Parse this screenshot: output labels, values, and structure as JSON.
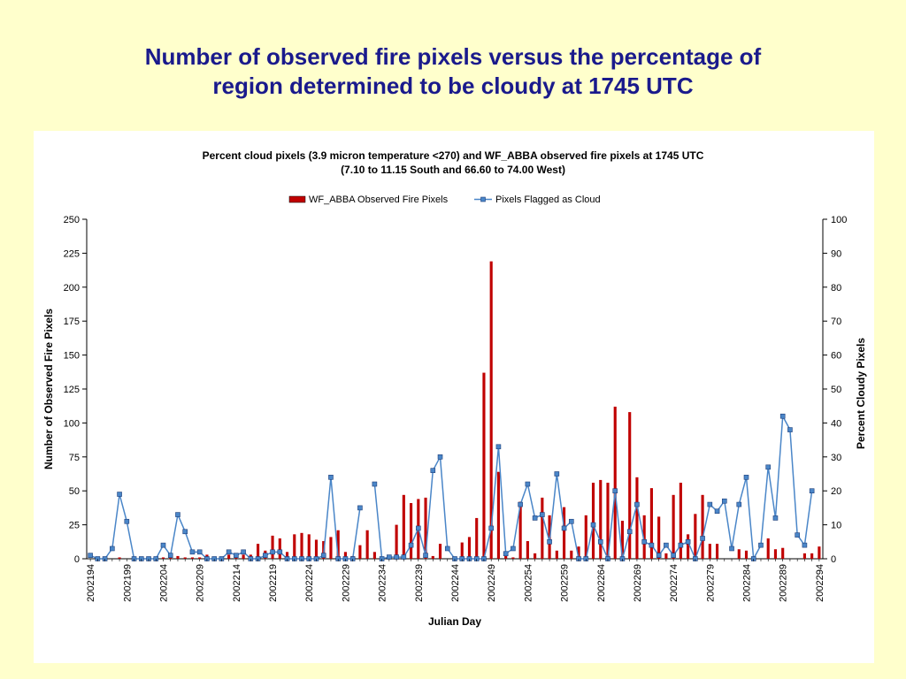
{
  "slide": {
    "title_line1": "Number of observed fire pixels versus the percentage of",
    "title_line2": "region determined to be cloudy at 1745 UTC"
  },
  "colors": {
    "background": "#ffffcc",
    "title": "#1a1a8c",
    "bars": "#c00000",
    "line": "#4a86c8"
  },
  "chart_data": {
    "type": "bar",
    "title": "Percent cloud pixels (3.9 micron temperature <270) and WF_ABBA observed fire pixels at 1745 UTC",
    "subtitle": "(7.10 to 11.15 South and 66.60 to 74.00 West)",
    "xlabel": "Julian Day",
    "ylabel": "Number of Observed Fire Pixels",
    "y2label": "Percent Cloudy Pixels",
    "ylim": [
      0,
      250
    ],
    "y2lim": [
      0,
      100
    ],
    "yticks": [
      "0",
      "25",
      "50",
      "75",
      "100",
      "125",
      "150",
      "175",
      "200",
      "225",
      "250"
    ],
    "y2ticks": [
      "0",
      "10",
      "20",
      "30",
      "40",
      "50",
      "60",
      "70",
      "80",
      "90",
      "100"
    ],
    "xticks": [
      "2002194",
      "2002199",
      "2002204",
      "2002209",
      "2002214",
      "2002219",
      "2002224",
      "2002229",
      "2002234",
      "2002239",
      "2002244",
      "2002249",
      "2002254",
      "2002259",
      "2002264",
      "2002269",
      "2002274",
      "2002279",
      "2002284",
      "2002289",
      "2002294"
    ],
    "legend_position": "top-center",
    "grid": false,
    "x": [
      194,
      195,
      196,
      197,
      198,
      199,
      200,
      201,
      202,
      203,
      204,
      205,
      206,
      207,
      208,
      209,
      210,
      211,
      212,
      213,
      214,
      215,
      216,
      217,
      218,
      219,
      220,
      221,
      222,
      223,
      224,
      225,
      226,
      227,
      228,
      229,
      230,
      231,
      232,
      233,
      234,
      235,
      236,
      237,
      238,
      239,
      240,
      241,
      242,
      243,
      244,
      245,
      246,
      247,
      248,
      249,
      250,
      251,
      252,
      253,
      254,
      255,
      256,
      257,
      258,
      259,
      260,
      261,
      262,
      263,
      264,
      265,
      266,
      267,
      268,
      269,
      270,
      271,
      272,
      273,
      274,
      275,
      276,
      277,
      278,
      279,
      280,
      281,
      282,
      283,
      284,
      285,
      286,
      287,
      288,
      289,
      290,
      291,
      292,
      293,
      294
    ],
    "series": [
      {
        "name": "WF_ABBA Observed Fire Pixels",
        "type": "bar",
        "axis": "left",
        "values": [
          0,
          0,
          1,
          0,
          1,
          0,
          0,
          0,
          0,
          0,
          1,
          1,
          2,
          1,
          1,
          1,
          3,
          1,
          1,
          3,
          3,
          3,
          3,
          11,
          6,
          17,
          15,
          5,
          18,
          19,
          18,
          14,
          13,
          16,
          21,
          5,
          2,
          10,
          21,
          5,
          0,
          0,
          25,
          47,
          41,
          44,
          45,
          2,
          11,
          0,
          0,
          12,
          16,
          30,
          137,
          219,
          64,
          2,
          1,
          42,
          13,
          4,
          45,
          32,
          6,
          38,
          6,
          9,
          32,
          56,
          58,
          56,
          112,
          28,
          108,
          60,
          32,
          52,
          31,
          4,
          47,
          56,
          18,
          33,
          47,
          11,
          11,
          0,
          0,
          7,
          6,
          0,
          0,
          15,
          7,
          8,
          0,
          0,
          4,
          4,
          9
        ]
      },
      {
        "name": "Pixels Flagged as Cloud",
        "type": "line",
        "axis": "right",
        "values": [
          1,
          0,
          0,
          3,
          19,
          11,
          0,
          0,
          0,
          0,
          4,
          1,
          13,
          8,
          2,
          2,
          0,
          0,
          0,
          2,
          1,
          2,
          0,
          0,
          1,
          2,
          2,
          0,
          0,
          0,
          0,
          0,
          1,
          24,
          0,
          0,
          0,
          15,
          null,
          22,
          0,
          0.5,
          0.5,
          0.5,
          4,
          9,
          1,
          26,
          30,
          3,
          0,
          0,
          0,
          0,
          0,
          9,
          33,
          1.5,
          3,
          16,
          22,
          12,
          13,
          5,
          25,
          9,
          11,
          0,
          0,
          10,
          5,
          0,
          20,
          0,
          8,
          16,
          5,
          4,
          1,
          4,
          1,
          4,
          5,
          0,
          6,
          16,
          14,
          17,
          3,
          16,
          24,
          0,
          4,
          27,
          12,
          42,
          38,
          7,
          4,
          20,
          null
        ]
      }
    ]
  }
}
